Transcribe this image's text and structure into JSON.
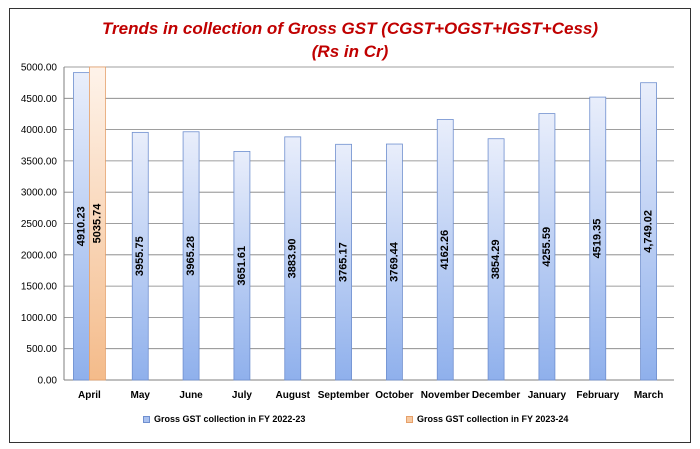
{
  "chart_data": {
    "type": "bar",
    "title": "Trends in collection of Gross GST (CGST+OGST+IGST+Cess)",
    "subtitle": "(Rs in Cr)",
    "categories": [
      "April",
      "May",
      "June",
      "July",
      "August",
      "September",
      "October",
      "November",
      "December",
      "January",
      "February",
      "March"
    ],
    "series": [
      {
        "name": "Gross GST collection in FY 2022-23",
        "values": [
          4910.23,
          3955.75,
          3965.28,
          3651.61,
          3883.9,
          3765.17,
          3769.44,
          4162.26,
          3854.29,
          4255.59,
          4519.35,
          4749.02
        ],
        "labels": [
          "4910.23",
          "3955.75",
          "3965.28",
          "3651.61",
          "3883.90",
          "3765.17",
          "3769.44",
          "4162.26",
          "3854.29",
          "4255.59",
          "4519.35",
          "4,749.02"
        ],
        "color_top": "#e9eefb",
        "color_bottom": "#8fb0ec",
        "border": "#6f8fcf"
      },
      {
        "name": "Gross GST collection in FY 2023-24",
        "values": [
          5035.74,
          null,
          null,
          null,
          null,
          null,
          null,
          null,
          null,
          null,
          null,
          null
        ],
        "labels": [
          "5035.74",
          "",
          "",
          "",
          "",
          "",
          "",
          "",
          "",
          "",
          "",
          ""
        ],
        "color_top": "#fef3ea",
        "color_bottom": "#f4bb8a",
        "border": "#e6a06a"
      }
    ],
    "y_ticks": [
      "0.00",
      "500.00",
      "1000.00",
      "1500.00",
      "2000.00",
      "2500.00",
      "3000.00",
      "3500.00",
      "4000.00",
      "4500.00",
      "5000.00"
    ],
    "ylim": [
      0,
      5000
    ],
    "grid": true,
    "legend_position": "bottom"
  }
}
